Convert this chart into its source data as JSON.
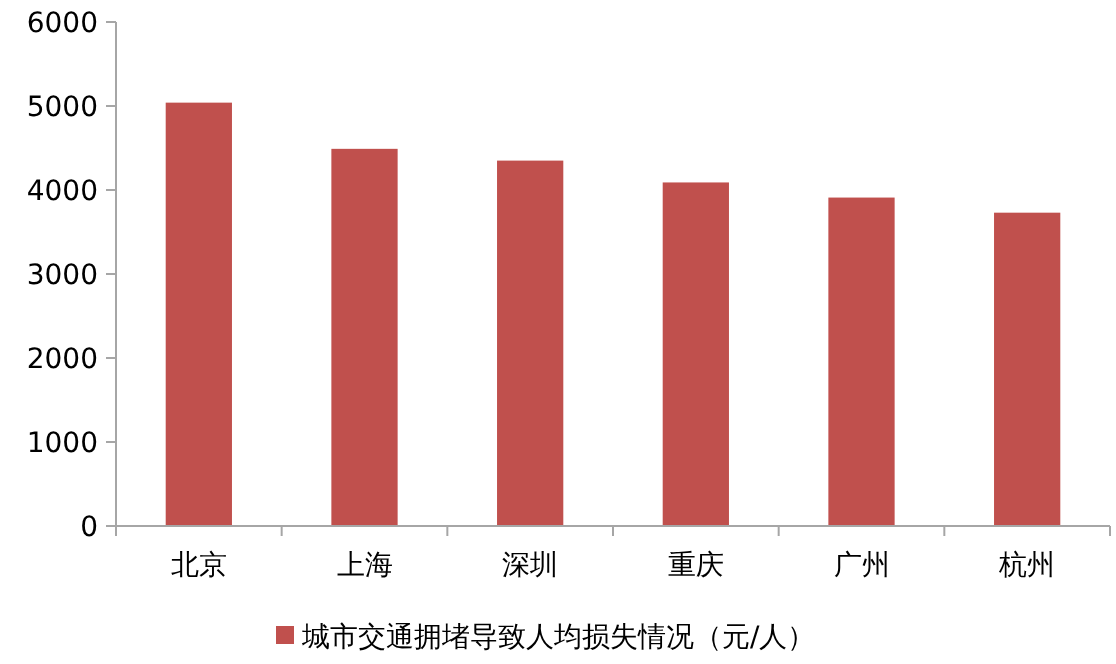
{
  "chart_data": {
    "type": "bar",
    "categories": [
      "北京",
      "上海",
      "深圳",
      "重庆",
      "广州",
      "杭州"
    ],
    "series": [
      {
        "name": "城市交通拥堵导致人均损失情况（元/人）",
        "color": "#c0504d",
        "values": [
          5040,
          4490,
          4350,
          4090,
          3910,
          3730
        ]
      }
    ],
    "ylim": [
      0,
      6000
    ],
    "yticks": [
      0,
      1000,
      2000,
      3000,
      4000,
      5000,
      6000
    ],
    "grid": false,
    "legend": "bottom"
  }
}
